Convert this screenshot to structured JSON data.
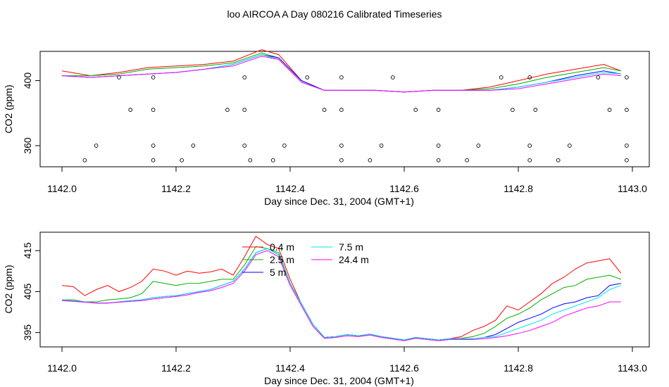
{
  "title": "loo AIRCOA A  Day 080216  Calibrated Timeseries",
  "chart_data": [
    {
      "type": "line",
      "panel": "top",
      "xlabel": "Day since Dec. 31, 2004 (GMT+1)",
      "ylabel": "CO2 (ppm)",
      "xlim": [
        1142.0,
        1143.0
      ],
      "ylim": [
        347,
        418
      ],
      "xticks": [
        "1142.0",
        "1142.2",
        "1142.4",
        "1142.6",
        "1142.8",
        "1143.0"
      ],
      "yticks": [
        "360",
        "400"
      ],
      "x": [
        1142.0,
        1142.05,
        1142.1,
        1142.15,
        1142.2,
        1142.25,
        1142.3,
        1142.35,
        1142.38,
        1142.42,
        1142.46,
        1142.5,
        1142.55,
        1142.6,
        1142.65,
        1142.7,
        1142.75,
        1142.8,
        1142.85,
        1142.9,
        1142.95,
        1142.98
      ],
      "series": [
        {
          "name": "0.4 m",
          "color": "#ff0000",
          "values": [
            406,
            403,
            405,
            408,
            409,
            410,
            412,
            419,
            416,
            400,
            394,
            394,
            394,
            393,
            394,
            394,
            396,
            400,
            404,
            407,
            410,
            406
          ]
        },
        {
          "name": "2.5 m",
          "color": "#00b000",
          "values": [
            403,
            403,
            404,
            407,
            408,
            409,
            411,
            417,
            414,
            400,
            394,
            394,
            394,
            393,
            394,
            394,
            395,
            398,
            402,
            405,
            408,
            406
          ]
        },
        {
          "name": "5 m",
          "color": "#0000ff",
          "values": [
            403,
            402,
            403,
            404,
            405,
            407,
            410,
            416,
            414,
            400,
            394,
            394,
            394,
            393,
            394,
            394,
            394,
            396,
            399,
            403,
            406,
            404
          ]
        },
        {
          "name": "7.5 m",
          "color": "#00e5e5",
          "values": [
            403,
            402,
            403,
            404,
            405,
            407,
            410,
            416,
            413,
            399,
            394,
            394,
            394,
            393,
            394,
            394,
            394,
            396,
            399,
            402,
            405,
            404
          ]
        },
        {
          "name": "24.4 m",
          "color": "#ff00ff",
          "values": [
            403,
            402,
            403,
            404,
            405,
            407,
            409,
            415,
            413,
            399,
            394,
            394,
            394,
            393,
            394,
            394,
            394,
            395,
            398,
            401,
            404,
            403
          ]
        }
      ],
      "points": [
        [
          1142.12,
          382
        ],
        [
          1142.16,
          382
        ],
        [
          1142.29,
          382
        ],
        [
          1142.32,
          382
        ],
        [
          1142.46,
          382
        ],
        [
          1142.49,
          382
        ],
        [
          1142.62,
          382
        ],
        [
          1142.66,
          382
        ],
        [
          1142.79,
          382
        ],
        [
          1142.83,
          382
        ],
        [
          1142.96,
          382
        ],
        [
          1142.99,
          382
        ],
        [
          1142.1,
          402
        ],
        [
          1142.16,
          402
        ],
        [
          1142.32,
          402
        ],
        [
          1142.43,
          402
        ],
        [
          1142.49,
          402
        ],
        [
          1142.58,
          402
        ],
        [
          1142.77,
          402
        ],
        [
          1142.82,
          402
        ],
        [
          1142.94,
          402
        ],
        [
          1142.99,
          402
        ],
        [
          1142.06,
          360
        ],
        [
          1142.16,
          360
        ],
        [
          1142.23,
          360
        ],
        [
          1142.32,
          360
        ],
        [
          1142.39,
          360
        ],
        [
          1142.49,
          360
        ],
        [
          1142.56,
          360
        ],
        [
          1142.66,
          360
        ],
        [
          1142.73,
          360
        ],
        [
          1142.82,
          360
        ],
        [
          1142.89,
          360
        ],
        [
          1142.99,
          360
        ],
        [
          1142.04,
          351
        ],
        [
          1142.16,
          351
        ],
        [
          1142.21,
          351
        ],
        [
          1142.33,
          351
        ],
        [
          1142.37,
          351
        ],
        [
          1142.49,
          351
        ],
        [
          1142.54,
          351
        ],
        [
          1142.66,
          351
        ],
        [
          1142.71,
          351
        ],
        [
          1142.82,
          351
        ],
        [
          1142.87,
          351
        ],
        [
          1142.99,
          351
        ]
      ]
    },
    {
      "type": "line",
      "panel": "bottom",
      "xlabel": "Day since Dec. 31, 2004 (GMT+1)",
      "ylabel": "CO2 (ppm)",
      "xlim": [
        1142.0,
        1143.0
      ],
      "ylim": [
        391.5,
        419.5
      ],
      "xticks": [
        "1142.0",
        "1142.2",
        "1142.4",
        "1142.6",
        "1142.8",
        "1143.0"
      ],
      "yticks": [
        "395",
        "405",
        "415"
      ],
      "legend": {
        "position": "top-center",
        "columns": 2
      },
      "x": [
        1142.0,
        1142.02,
        1142.04,
        1142.06,
        1142.08,
        1142.1,
        1142.12,
        1142.14,
        1142.16,
        1142.18,
        1142.2,
        1142.22,
        1142.24,
        1142.26,
        1142.28,
        1142.3,
        1142.32,
        1142.34,
        1142.36,
        1142.38,
        1142.4,
        1142.42,
        1142.44,
        1142.46,
        1142.48,
        1142.5,
        1142.52,
        1142.54,
        1142.56,
        1142.58,
        1142.6,
        1142.62,
        1142.64,
        1142.66,
        1142.68,
        1142.7,
        1142.72,
        1142.74,
        1142.76,
        1142.78,
        1142.8,
        1142.82,
        1142.84,
        1142.86,
        1142.88,
        1142.9,
        1142.92,
        1142.94,
        1142.96,
        1142.98
      ],
      "series": [
        {
          "name": "0.4 m",
          "color": "#ff0000",
          "values": [
            406.5,
            406.2,
            404.0,
            405.5,
            406.5,
            405.0,
            406.0,
            407.5,
            410.5,
            410.0,
            409.0,
            410.0,
            409.5,
            409.8,
            410.5,
            409.0,
            413.5,
            418.5,
            416.5,
            415.5,
            408.0,
            402.0,
            397.0,
            393.8,
            394.0,
            394.5,
            394.2,
            394.6,
            394.0,
            393.6,
            393.2,
            393.8,
            393.5,
            393.2,
            393.5,
            394.0,
            395.5,
            396.5,
            398.0,
            401.5,
            400.5,
            402.5,
            404.5,
            407.0,
            408.5,
            410.5,
            412.0,
            412.5,
            413.0,
            409.5
          ]
        },
        {
          "name": "2.5 m",
          "color": "#00b000",
          "values": [
            403.0,
            403.0,
            402.5,
            402.5,
            403.0,
            403.2,
            403.5,
            404.5,
            407.5,
            407.0,
            406.5,
            407.0,
            407.0,
            407.5,
            408.0,
            408.0,
            411.5,
            416.0,
            415.5,
            414.5,
            407.0,
            402.0,
            397.0,
            393.8,
            394.0,
            394.5,
            394.2,
            394.6,
            394.0,
            393.6,
            393.2,
            393.8,
            393.5,
            393.2,
            393.5,
            393.6,
            394.0,
            394.8,
            396.5,
            398.5,
            399.5,
            401.0,
            403.0,
            404.5,
            406.0,
            406.5,
            408.0,
            408.5,
            409.0,
            408.0
          ]
        },
        {
          "name": "5 m",
          "color": "#0000ff",
          "values": [
            403.0,
            402.7,
            402.5,
            402.2,
            402.2,
            402.5,
            402.8,
            403.0,
            403.5,
            403.8,
            404.0,
            404.5,
            405.0,
            405.5,
            406.5,
            407.5,
            410.5,
            414.5,
            415.5,
            414.0,
            407.0,
            402.0,
            397.0,
            393.8,
            394.0,
            394.5,
            394.2,
            394.6,
            394.0,
            393.6,
            393.2,
            393.8,
            393.5,
            393.2,
            393.5,
            393.5,
            393.5,
            393.8,
            394.5,
            396.0,
            397.5,
            398.5,
            399.5,
            401.0,
            402.0,
            402.5,
            403.5,
            404.0,
            406.5,
            407.0
          ]
        },
        {
          "name": "7.5 m",
          "color": "#00e5e5",
          "values": [
            403.0,
            402.7,
            402.5,
            402.2,
            402.2,
            402.5,
            402.8,
            403.0,
            403.5,
            403.8,
            404.0,
            404.5,
            405.0,
            405.5,
            406.5,
            407.5,
            410.5,
            414.5,
            415.5,
            414.0,
            407.0,
            402.0,
            397.0,
            393.8,
            394.0,
            394.5,
            394.2,
            394.6,
            394.0,
            393.6,
            393.2,
            393.8,
            393.5,
            393.2,
            393.5,
            393.5,
            393.5,
            393.8,
            394.0,
            395.0,
            396.0,
            397.0,
            398.0,
            399.5,
            400.5,
            401.5,
            402.5,
            403.5,
            405.5,
            406.5
          ]
        },
        {
          "name": "24.4 m",
          "color": "#ff00ff",
          "values": [
            402.8,
            402.6,
            402.4,
            402.2,
            402.2,
            402.4,
            402.6,
            402.8,
            403.2,
            403.5,
            403.8,
            404.2,
            404.8,
            405.2,
            406.0,
            407.0,
            410.0,
            414.0,
            415.0,
            413.5,
            406.5,
            401.5,
            396.5,
            393.6,
            393.8,
            394.2,
            394.0,
            394.4,
            393.8,
            393.4,
            393.0,
            393.6,
            393.3,
            393.0,
            393.3,
            393.3,
            393.3,
            393.5,
            393.8,
            394.2,
            394.8,
            395.5,
            396.5,
            397.5,
            399.0,
            400.0,
            401.0,
            401.5,
            402.5,
            402.5
          ]
        }
      ]
    }
  ]
}
